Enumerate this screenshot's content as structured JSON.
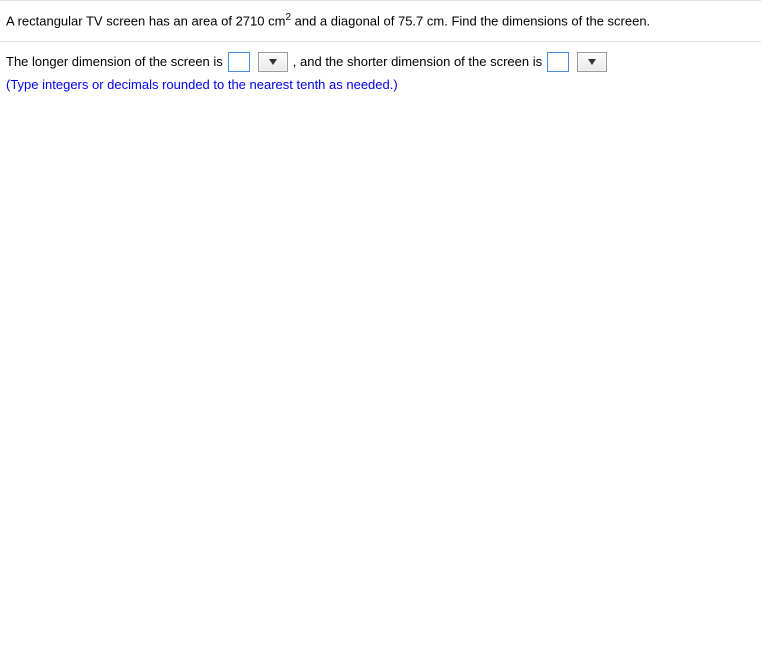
{
  "problem": {
    "text_part1": "A rectangular TV screen has an area of 2710 cm",
    "exponent": "2",
    "text_part2": " and a diagonal of 75.7 cm. Find the dimensions of the screen."
  },
  "answer": {
    "prefix_text": "The longer dimension of the screen is ",
    "middle_text": ", and the shorter dimension of the screen is ",
    "input1_value": "",
    "input2_value": "",
    "dropdown1_value": "",
    "dropdown2_value": ""
  },
  "instruction": {
    "text": "(Type integers or decimals rounded to the nearest tenth as needed.)"
  },
  "colors": {
    "divider": "#e0e0e0",
    "text": "#000000",
    "instruction_text": "#0000ee",
    "input_border": "#4a90d9",
    "dropdown_border": "#999999"
  }
}
